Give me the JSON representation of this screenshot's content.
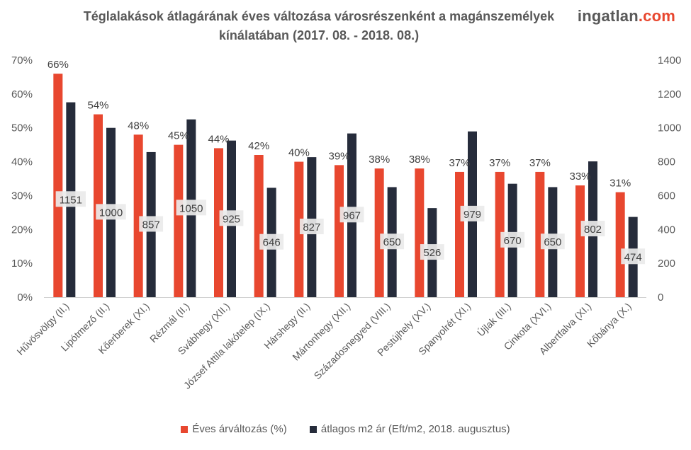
{
  "title_line1": "Téglalakások átlagárának éves változása városrészenként a magánszemélyek",
  "title_line2": "kínálatában (2017. 08. - 2018. 08.)",
  "brand": {
    "part1": "ingatlan",
    "part2": ".com"
  },
  "colors": {
    "pct": "#e8472f",
    "price": "#262c3b",
    "text": "#595959",
    "label_bg": "#eaeaea"
  },
  "legend": {
    "pct": "Éves árváltozás (%)",
    "price": "átlagos m2 ár (Eft/m2, 2018. augusztus)"
  },
  "chart_data": {
    "type": "bar",
    "title": "Téglalakások átlagárának éves változása városrészenként a magánszemélyek kínálatában (2017. 08. - 2018. 08.)",
    "categories": [
      "Hűvösvölgy (II.)",
      "Lipótmező (II.)",
      "Kőerberek (XI.)",
      "Rézmál (II.)",
      "Svábhegy (XII.)",
      "József Attila lakótelep (IX.)",
      "Hárshegy (II.)",
      "Mártonhegy (XII.)",
      "Századosnegyed (VIII.)",
      "Pestújhely (XV.)",
      "Spanyolrét (XI.)",
      "Újlak (III.)",
      "Cinkota (XVI.)",
      "Albertfalva (XI.)",
      "Kőbánya (X.)"
    ],
    "series": [
      {
        "name": "Éves árváltozás (%)",
        "axis": "left",
        "values": [
          66,
          54,
          48,
          45,
          44,
          42,
          40,
          39,
          38,
          38,
          37,
          37,
          37,
          33,
          31
        ],
        "labels": [
          "66%",
          "54%",
          "48%",
          "45%",
          "44%",
          "42%",
          "40%",
          "39%",
          "38%",
          "38%",
          "37%",
          "37%",
          "37%",
          "33%",
          "31%"
        ]
      },
      {
        "name": "átlagos m2 ár (Eft/m2, 2018. augusztus)",
        "axis": "right",
        "values": [
          1151,
          1000,
          857,
          1050,
          925,
          646,
          827,
          967,
          650,
          526,
          979,
          670,
          650,
          802,
          474
        ],
        "labels": [
          "1151",
          "1000",
          "857",
          "1050",
          "925",
          "646",
          "827",
          "967",
          "650",
          "526",
          "979",
          "670",
          "650",
          "802",
          "474"
        ]
      }
    ],
    "y_left": {
      "ticks": [
        "0%",
        "10%",
        "20%",
        "30%",
        "40%",
        "50%",
        "60%",
        "70%"
      ],
      "min": 0,
      "max": 70
    },
    "y_right": {
      "ticks": [
        "0",
        "200",
        "400",
        "600",
        "800",
        "1000",
        "1200",
        "1400"
      ],
      "min": 0,
      "max": 1400
    },
    "grid": false,
    "legend_position": "bottom"
  }
}
